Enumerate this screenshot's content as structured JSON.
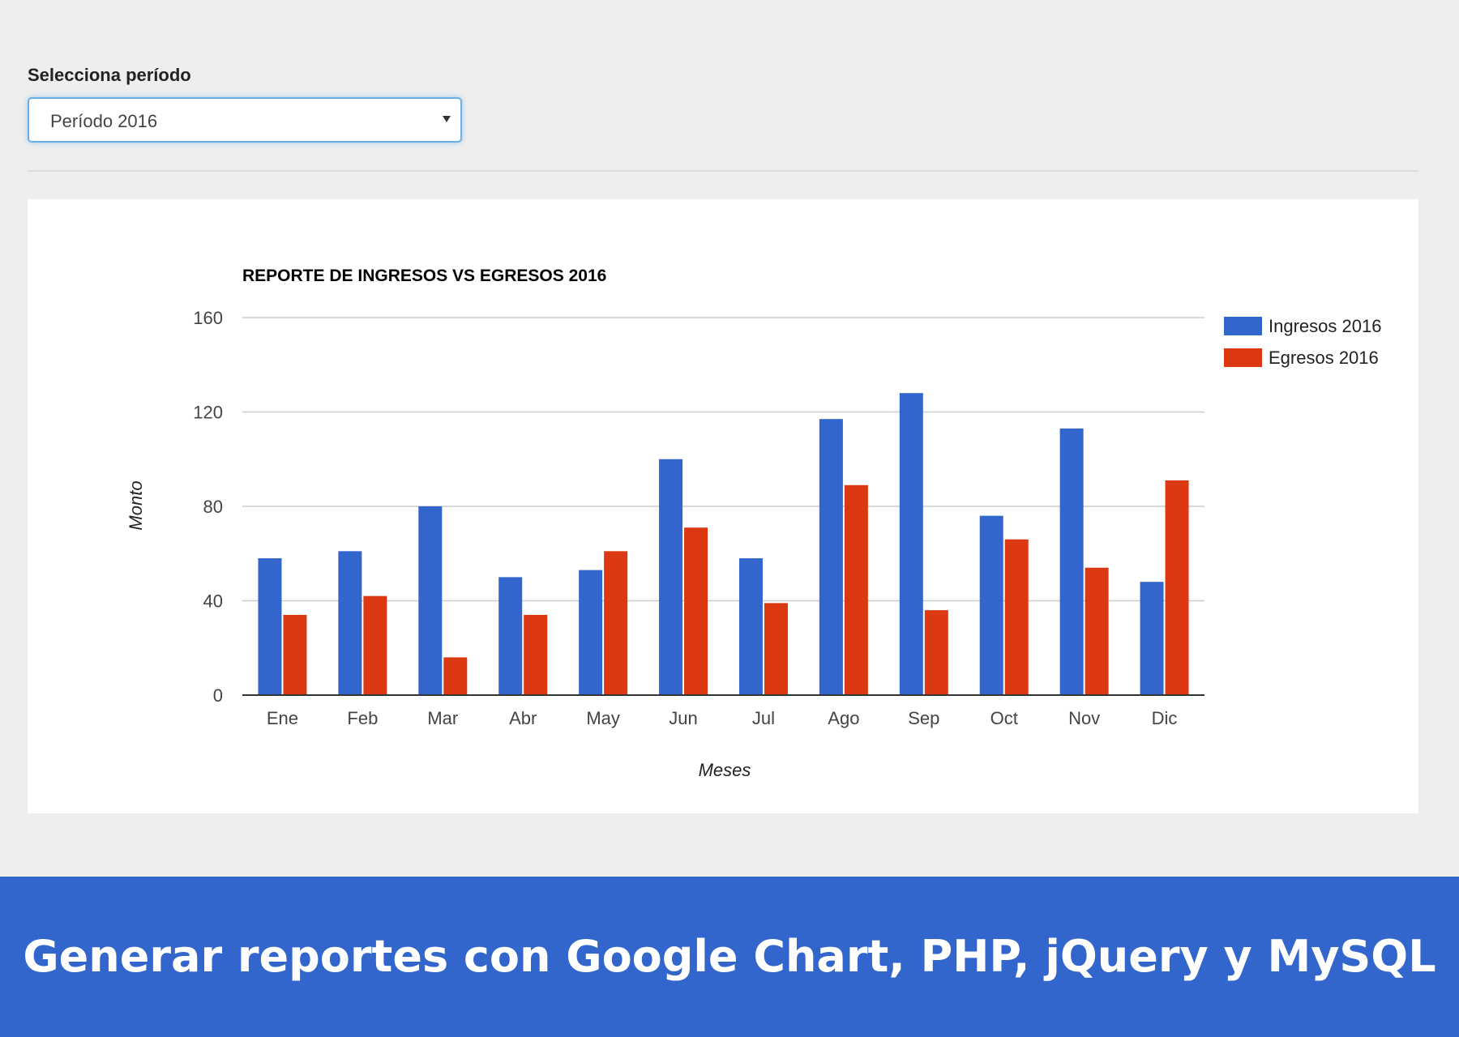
{
  "filter": {
    "label": "Selecciona período",
    "selected": "Período 2016"
  },
  "chart_data": {
    "type": "bar",
    "title": "REPORTE DE INGRESOS VS EGRESOS 2016",
    "xlabel": "Meses",
    "ylabel": "Monto",
    "ylim": [
      0,
      160
    ],
    "yticks": [
      0,
      40,
      80,
      120,
      160
    ],
    "grid": true,
    "legend_position": "right",
    "categories": [
      "Ene",
      "Feb",
      "Mar",
      "Abr",
      "May",
      "Jun",
      "Jul",
      "Ago",
      "Sep",
      "Oct",
      "Nov",
      "Dic"
    ],
    "series": [
      {
        "name": "Ingresos 2016",
        "color": "#3366cc",
        "values": [
          58,
          61,
          80,
          50,
          53,
          100,
          58,
          117,
          128,
          76,
          113,
          48
        ]
      },
      {
        "name": "Egresos 2016",
        "color": "#dc3912",
        "values": [
          34,
          42,
          16,
          34,
          61,
          71,
          39,
          89,
          36,
          66,
          54,
          91
        ]
      }
    ]
  },
  "footer": {
    "title": "Generar reportes con Google Chart, PHP, jQuery y MySQL"
  }
}
